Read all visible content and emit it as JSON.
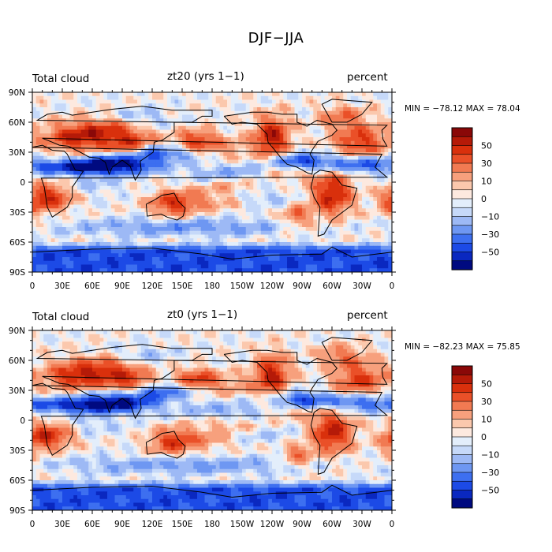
{
  "title": "DJF−JJA",
  "palette": [
    "#000a80",
    "#0a28c0",
    "#1c4ae6",
    "#3d6ff0",
    "#6e97f2",
    "#9db9f5",
    "#c6d9f9",
    "#e3eefb",
    "#fde9df",
    "#fbc8ad",
    "#f7a07d",
    "#f17a52",
    "#ea5028",
    "#d9300c",
    "#b51a08",
    "#8a0808"
  ],
  "chart_data": [
    {
      "type": "heatmap",
      "id": "zt20",
      "left_label": "Total cloud",
      "center_label": "zt20 (yrs 1−1)",
      "right_label": "percent",
      "stats": "MIN = −78.12 MAX =  78.04",
      "min": -78.12,
      "max": 78.04,
      "xlim": [
        0,
        360
      ],
      "ylim": [
        -90,
        90
      ],
      "x_ticks": [
        "0",
        "30E",
        "60E",
        "90E",
        "120E",
        "150E",
        "180",
        "150W",
        "120W",
        "90W",
        "60W",
        "30W",
        "0"
      ],
      "y_ticks": [
        "90N",
        "60N",
        "30N",
        "0",
        "30S",
        "60S",
        "90S"
      ],
      "colorbar_levels": [
        "50",
        "30",
        "10",
        "0",
        "−10",
        "−30",
        "−50"
      ]
    },
    {
      "type": "heatmap",
      "id": "zt0",
      "left_label": "Total cloud",
      "center_label": "zt0 (yrs 1−1)",
      "right_label": "percent",
      "stats": "MIN = −82.23 MAX =  75.85",
      "min": -82.23,
      "max": 75.85,
      "xlim": [
        0,
        360
      ],
      "ylim": [
        -90,
        90
      ],
      "x_ticks": [
        "0",
        "30E",
        "60E",
        "90E",
        "120E",
        "150E",
        "180",
        "150W",
        "120W",
        "90W",
        "60W",
        "30W",
        "0"
      ],
      "y_ticks": [
        "90N",
        "60N",
        "30N",
        "0",
        "30S",
        "60S",
        "90S"
      ],
      "colorbar_levels": [
        "50",
        "30",
        "10",
        "0",
        "−10",
        "−30",
        "−50"
      ]
    }
  ]
}
